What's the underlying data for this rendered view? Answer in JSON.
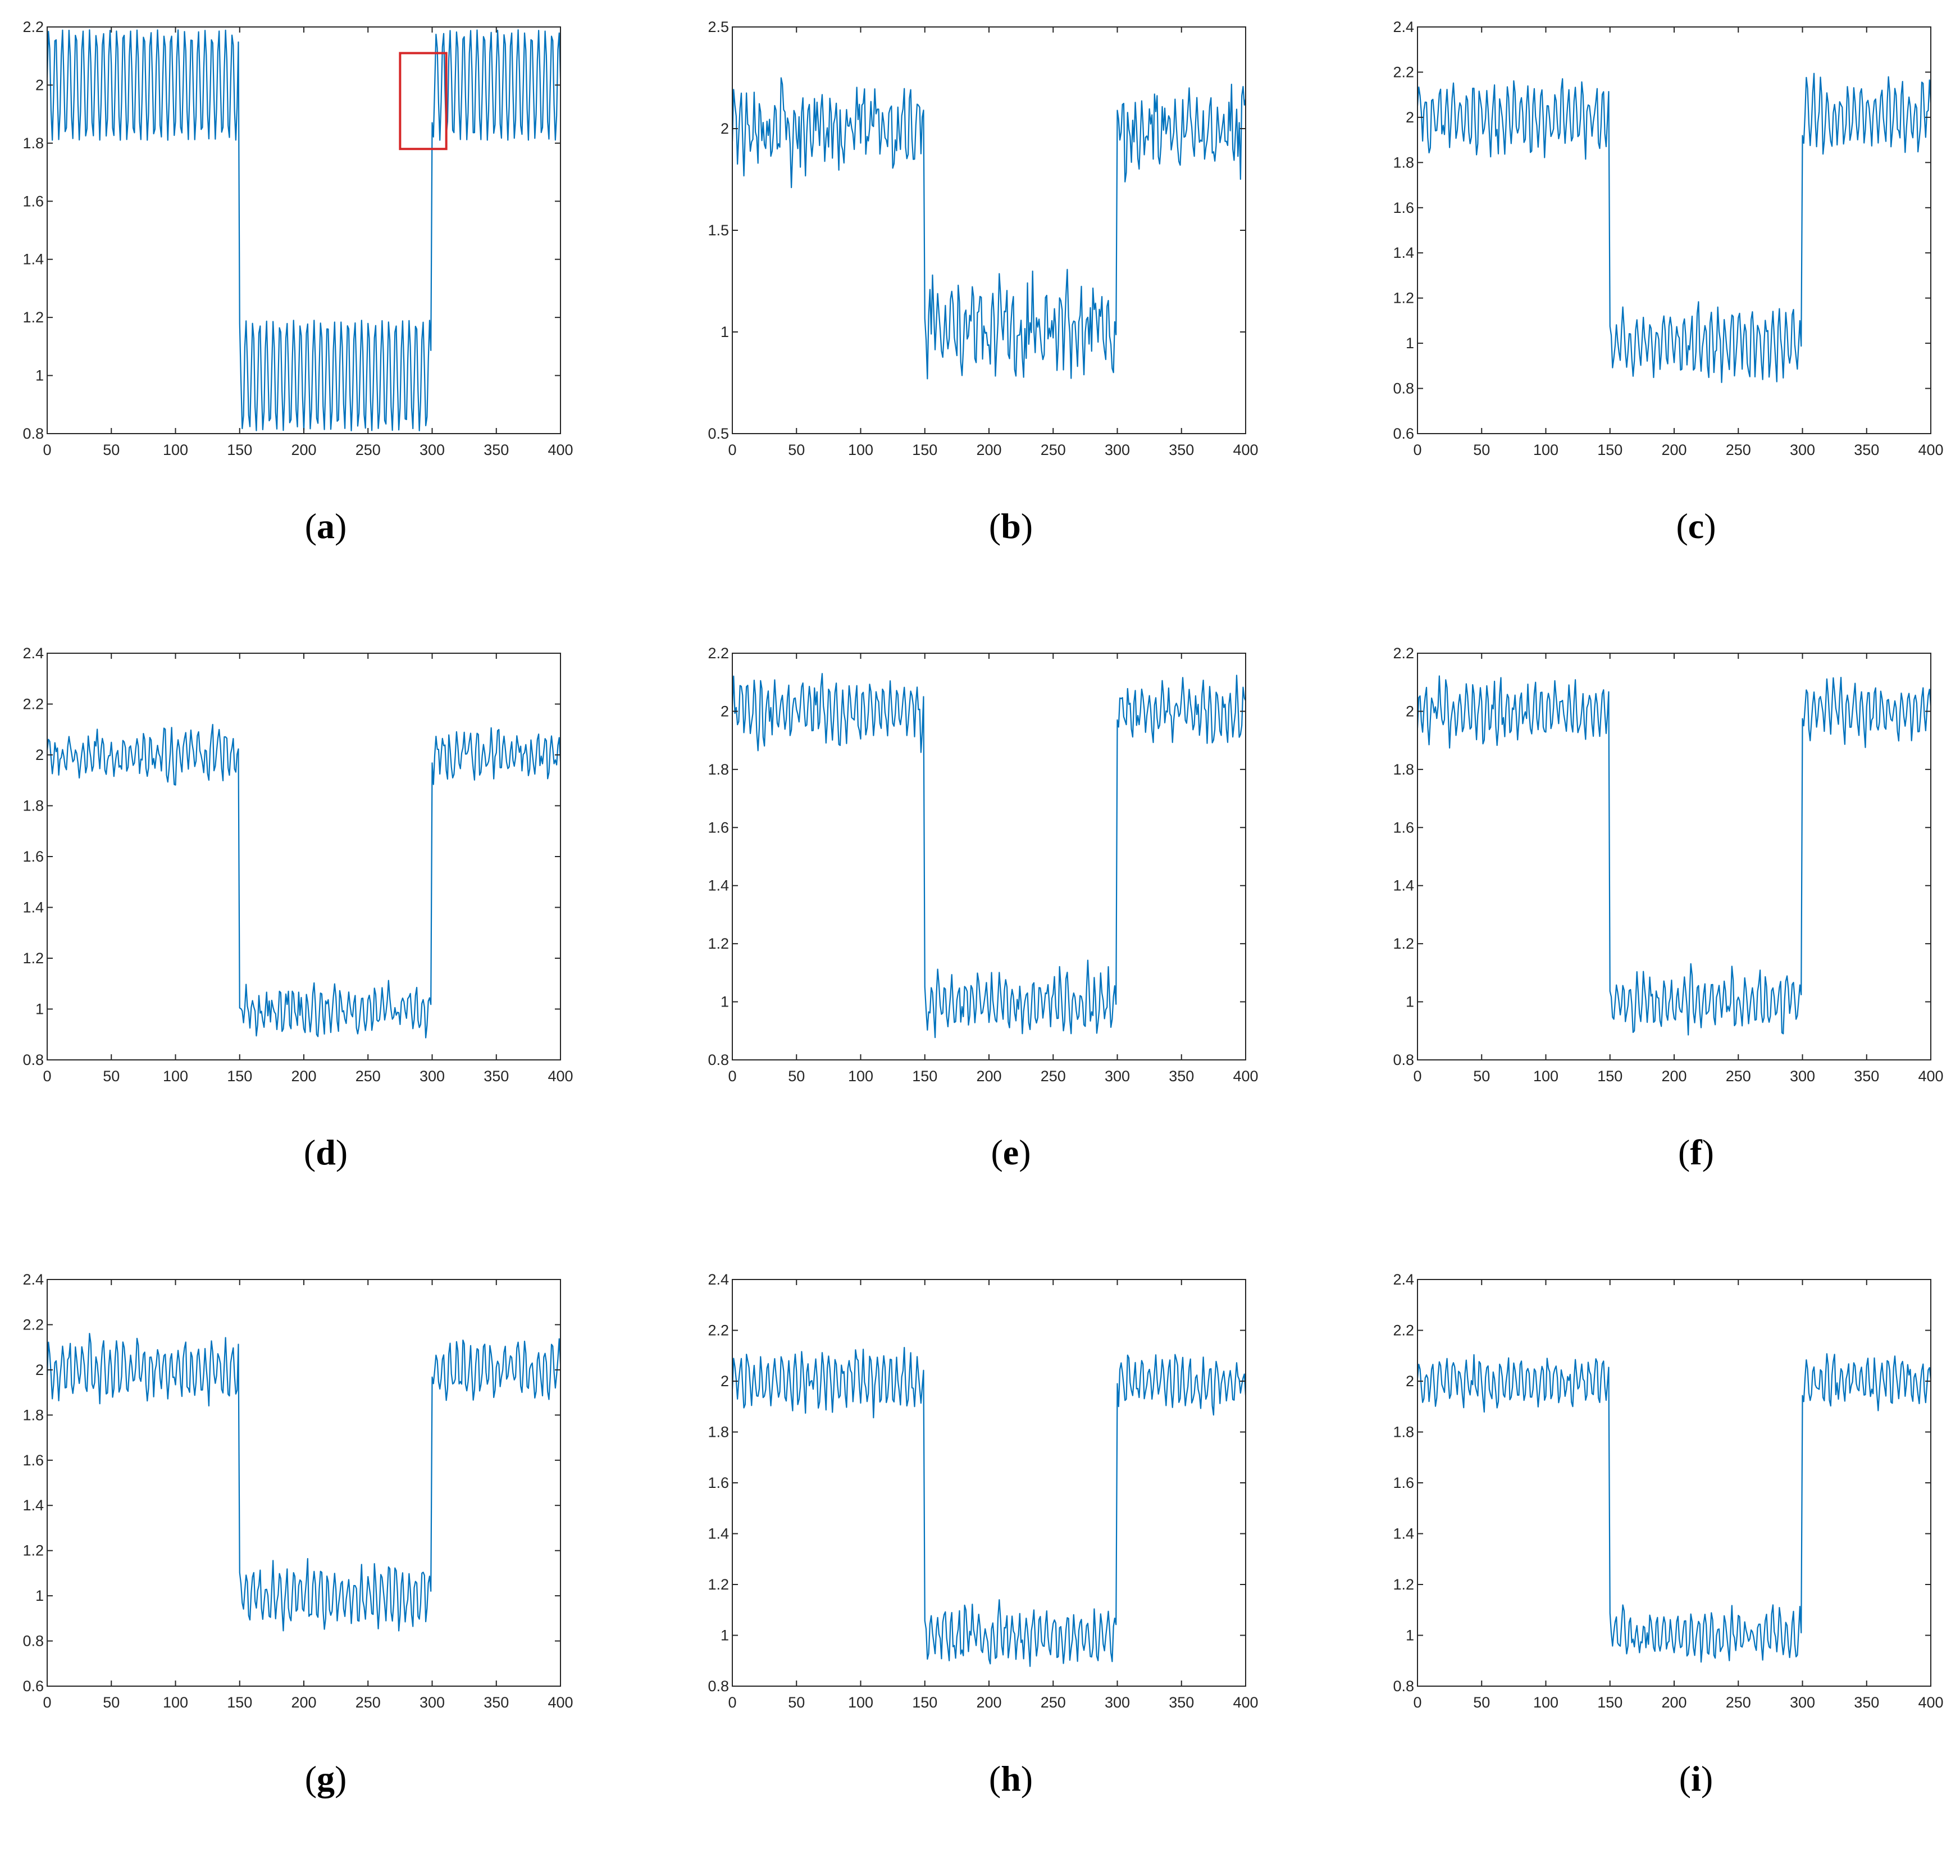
{
  "colors": {
    "line": "#0072BD",
    "axes": "#262626",
    "highlight_box": "#D62728"
  },
  "chart_data": [
    {
      "id": "a",
      "label": "a",
      "type": "line",
      "xlim": [
        0,
        400
      ],
      "ylim": [
        0.8,
        2.2
      ],
      "xticks": [
        0,
        50,
        100,
        150,
        200,
        250,
        300,
        350,
        400
      ],
      "yticks": [
        0.8,
        1,
        1.2,
        1.4,
        1.6,
        1.8,
        2,
        2.2
      ],
      "ytick_labels": [
        "0.8",
        "1",
        "1.2",
        "1.4",
        "1.6",
        "1.8",
        "2",
        "2.2"
      ],
      "signal": {
        "levels": [
          2.0,
          1.0,
          2.0
        ],
        "breaks": [
          150,
          300
        ],
        "amplitude": 0.19,
        "noise": 0.0,
        "period": 5.3,
        "seed": 1
      },
      "highlight_box": {
        "x": [
          275,
          311
        ],
        "y": [
          1.78,
          2.11
        ]
      },
      "grid": false,
      "legend": "none"
    },
    {
      "id": "b",
      "label": "b",
      "type": "line",
      "xlim": [
        0,
        400
      ],
      "ylim": [
        0.5,
        2.5
      ],
      "xticks": [
        0,
        50,
        100,
        150,
        200,
        250,
        300,
        350,
        400
      ],
      "yticks": [
        0.5,
        1,
        1.5,
        2,
        2.5
      ],
      "ytick_labels": [
        "0.5",
        "1",
        "1.5",
        "2",
        "2.5"
      ],
      "signal": {
        "levels": [
          2.0,
          1.0,
          2.0
        ],
        "breaks": [
          150,
          300
        ],
        "amplitude": 0.1,
        "noise": 0.17,
        "period": 5.3,
        "seed": 2
      },
      "grid": false,
      "legend": "none"
    },
    {
      "id": "c",
      "label": "c",
      "type": "line",
      "xlim": [
        0,
        400
      ],
      "ylim": [
        0.6,
        2.4
      ],
      "xticks": [
        0,
        50,
        100,
        150,
        200,
        250,
        300,
        350,
        400
      ],
      "yticks": [
        0.6,
        0.8,
        1,
        1.2,
        1.4,
        1.6,
        1.8,
        2,
        2.2,
        2.4
      ],
      "ytick_labels": [
        "0.6",
        "0.8",
        "1",
        "1.2",
        "1.4",
        "1.6",
        "1.8",
        "2",
        "2.2",
        "2.4"
      ],
      "signal": {
        "levels": [
          2.0,
          1.0,
          2.0
        ],
        "breaks": [
          150,
          300
        ],
        "amplitude": 0.12,
        "noise": 0.07,
        "period": 5.3,
        "seed": 3
      },
      "grid": false,
      "legend": "none"
    },
    {
      "id": "d",
      "label": "d",
      "type": "line",
      "xlim": [
        0,
        400
      ],
      "ylim": [
        0.8,
        2.4
      ],
      "xticks": [
        0,
        50,
        100,
        150,
        200,
        250,
        300,
        350,
        400
      ],
      "yticks": [
        0.8,
        1,
        1.2,
        1.4,
        1.6,
        1.8,
        2,
        2.2,
        2.4
      ],
      "ytick_labels": [
        "0.8",
        "1",
        "1.2",
        "1.4",
        "1.6",
        "1.8",
        "2",
        "2.2",
        "2.4"
      ],
      "signal": {
        "levels": [
          2.0,
          1.0,
          2.0
        ],
        "breaks": [
          150,
          300
        ],
        "amplitude": 0.06,
        "noise": 0.06,
        "period": 5.3,
        "seed": 4
      },
      "grid": false,
      "legend": "none"
    },
    {
      "id": "e",
      "label": "e",
      "type": "line",
      "xlim": [
        0,
        400
      ],
      "ylim": [
        0.8,
        2.2
      ],
      "xticks": [
        0,
        50,
        100,
        150,
        200,
        250,
        300,
        350,
        400
      ],
      "yticks": [
        0.8,
        1,
        1.2,
        1.4,
        1.6,
        1.8,
        2,
        2.2
      ],
      "ytick_labels": [
        "0.8",
        "1",
        "1.2",
        "1.4",
        "1.6",
        "1.8",
        "2",
        "2.2"
      ],
      "signal": {
        "levels": [
          2.0,
          1.0,
          2.0
        ],
        "breaks": [
          150,
          300
        ],
        "amplitude": 0.07,
        "noise": 0.06,
        "period": 5.3,
        "seed": 5
      },
      "grid": false,
      "legend": "none"
    },
    {
      "id": "f",
      "label": "f",
      "type": "line",
      "xlim": [
        0,
        400
      ],
      "ylim": [
        0.8,
        2.2
      ],
      "xticks": [
        0,
        50,
        100,
        150,
        200,
        250,
        300,
        350,
        400
      ],
      "yticks": [
        0.8,
        1,
        1.2,
        1.4,
        1.6,
        1.8,
        2,
        2.2
      ],
      "ytick_labels": [
        "0.8",
        "1",
        "1.2",
        "1.4",
        "1.6",
        "1.8",
        "2",
        "2.2"
      ],
      "signal": {
        "levels": [
          2.0,
          1.0,
          2.0
        ],
        "breaks": [
          150,
          300
        ],
        "amplitude": 0.07,
        "noise": 0.05,
        "period": 5.3,
        "seed": 6
      },
      "grid": false,
      "legend": "none"
    },
    {
      "id": "g",
      "label": "g",
      "type": "line",
      "xlim": [
        0,
        400
      ],
      "ylim": [
        0.6,
        2.4
      ],
      "xticks": [
        0,
        50,
        100,
        150,
        200,
        250,
        300,
        350,
        400
      ],
      "yticks": [
        0.6,
        0.8,
        1,
        1.2,
        1.4,
        1.6,
        1.8,
        2,
        2.2,
        2.4
      ],
      "ytick_labels": [
        "0.6",
        "0.8",
        "1",
        "1.2",
        "1.4",
        "1.6",
        "1.8",
        "2",
        "2.2",
        "2.4"
      ],
      "signal": {
        "levels": [
          2.0,
          1.0,
          2.0
        ],
        "breaks": [
          150,
          300
        ],
        "amplitude": 0.1,
        "noise": 0.06,
        "period": 5.3,
        "seed": 7
      },
      "grid": false,
      "legend": "none"
    },
    {
      "id": "h",
      "label": "h",
      "type": "line",
      "xlim": [
        0,
        400
      ],
      "ylim": [
        0.8,
        2.4
      ],
      "xticks": [
        0,
        50,
        100,
        150,
        200,
        250,
        300,
        350,
        400
      ],
      "yticks": [
        0.8,
        1,
        1.2,
        1.4,
        1.6,
        1.8,
        2,
        2.2,
        2.4
      ],
      "ytick_labels": [
        "0.8",
        "1",
        "1.2",
        "1.4",
        "1.6",
        "1.8",
        "2",
        "2.2",
        "2.4"
      ],
      "signal": {
        "levels": [
          2.0,
          1.0,
          2.0
        ],
        "breaks": [
          150,
          300
        ],
        "amplitude": 0.08,
        "noise": 0.06,
        "period": 5.3,
        "seed": 8
      },
      "grid": false,
      "legend": "none"
    },
    {
      "id": "i",
      "label": "i",
      "type": "line",
      "xlim": [
        0,
        400
      ],
      "ylim": [
        0.8,
        2.4
      ],
      "xticks": [
        0,
        50,
        100,
        150,
        200,
        250,
        300,
        350,
        400
      ],
      "yticks": [
        0.8,
        1,
        1.2,
        1.4,
        1.6,
        1.8,
        2,
        2.2,
        2.4
      ],
      "ytick_labels": [
        "0.8",
        "1",
        "1.2",
        "1.4",
        "1.6",
        "1.8",
        "2",
        "2.2",
        "2.4"
      ],
      "signal": {
        "levels": [
          2.0,
          1.0,
          2.0
        ],
        "breaks": [
          150,
          300
        ],
        "amplitude": 0.07,
        "noise": 0.05,
        "period": 5.3,
        "seed": 9
      },
      "grid": false,
      "legend": "none"
    }
  ]
}
